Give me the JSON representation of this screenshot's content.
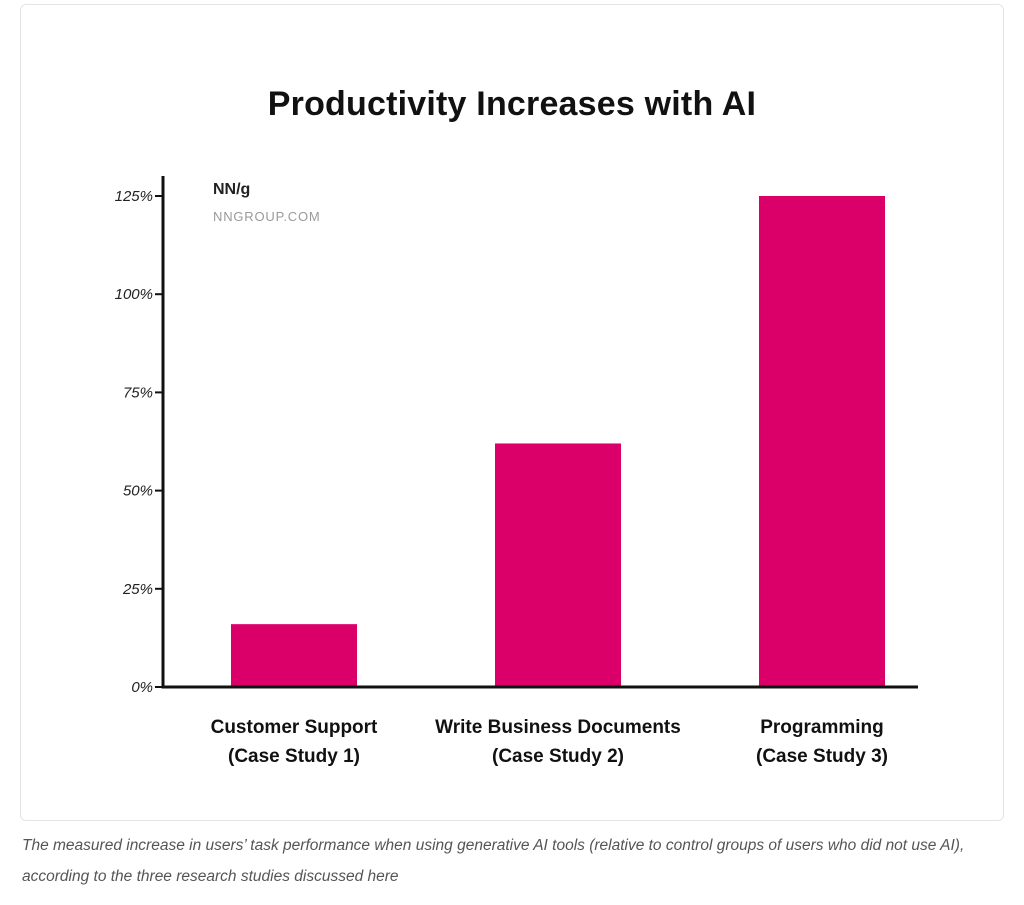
{
  "chart_data": {
    "type": "bar",
    "title": "Productivity Increases with AI",
    "categories": [
      [
        "Customer Support",
        "(Case Study 1)"
      ],
      [
        "Write Business Documents",
        "(Case Study 2)"
      ],
      [
        "Programming",
        "(Case Study 3)"
      ]
    ],
    "values": [
      16,
      62,
      125
    ],
    "ylim": [
      0,
      125
    ],
    "yticks": [
      0,
      25,
      50,
      75,
      100,
      125
    ],
    "ytick_labels": [
      "0%",
      "25%",
      "50%",
      "75%",
      "100%",
      "125%"
    ],
    "bar_color": "#db0069",
    "grid": false
  },
  "brand": {
    "logo": "NN/g",
    "site": "NNGROUP.COM"
  },
  "caption": "The measured increase in users’ task performance when using generative AI tools (relative to control groups of users who did not use AI), according to the three research studies discussed here"
}
